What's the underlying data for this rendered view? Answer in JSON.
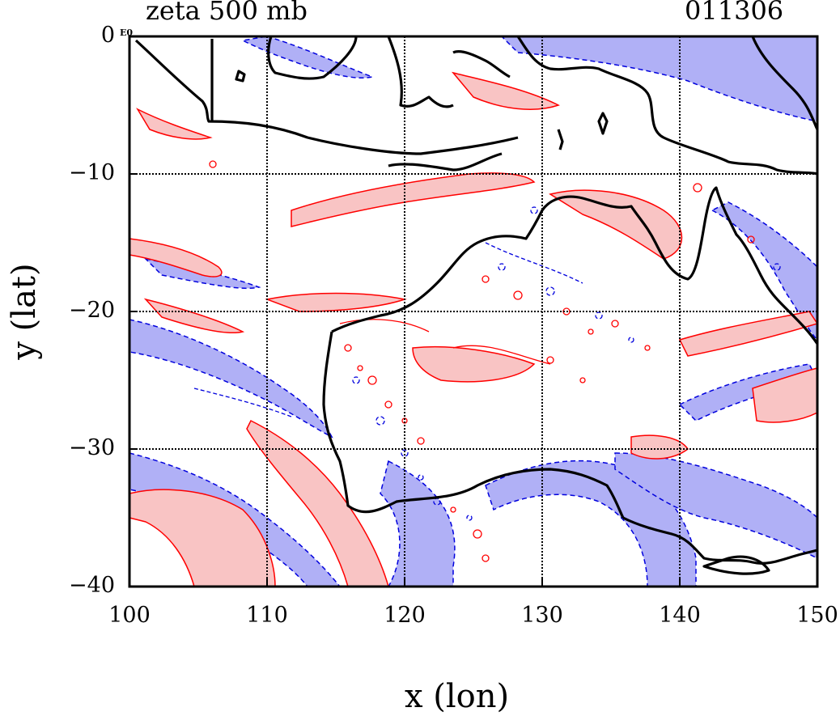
{
  "title": {
    "left": "zeta 500 mb",
    "right": "011306"
  },
  "corner_tag": "E0",
  "axes": {
    "xlabel": "x (lon)",
    "ylabel": "y (lat)",
    "xlim": [
      100,
      150
    ],
    "ylim": [
      -40,
      0
    ],
    "xticks": [
      "100",
      "110",
      "120",
      "130",
      "140",
      "150"
    ],
    "yticks": [
      "0",
      "−10",
      "−20",
      "−30",
      "−40"
    ],
    "grid": "dotted black at 10 degree intervals"
  },
  "colors": {
    "positive_fill": "#f9c4c4",
    "positive_line": "#ff0000",
    "negative_fill": "#b0b0f6",
    "negative_line": "#0000dd",
    "coastline": "#000000"
  }
}
